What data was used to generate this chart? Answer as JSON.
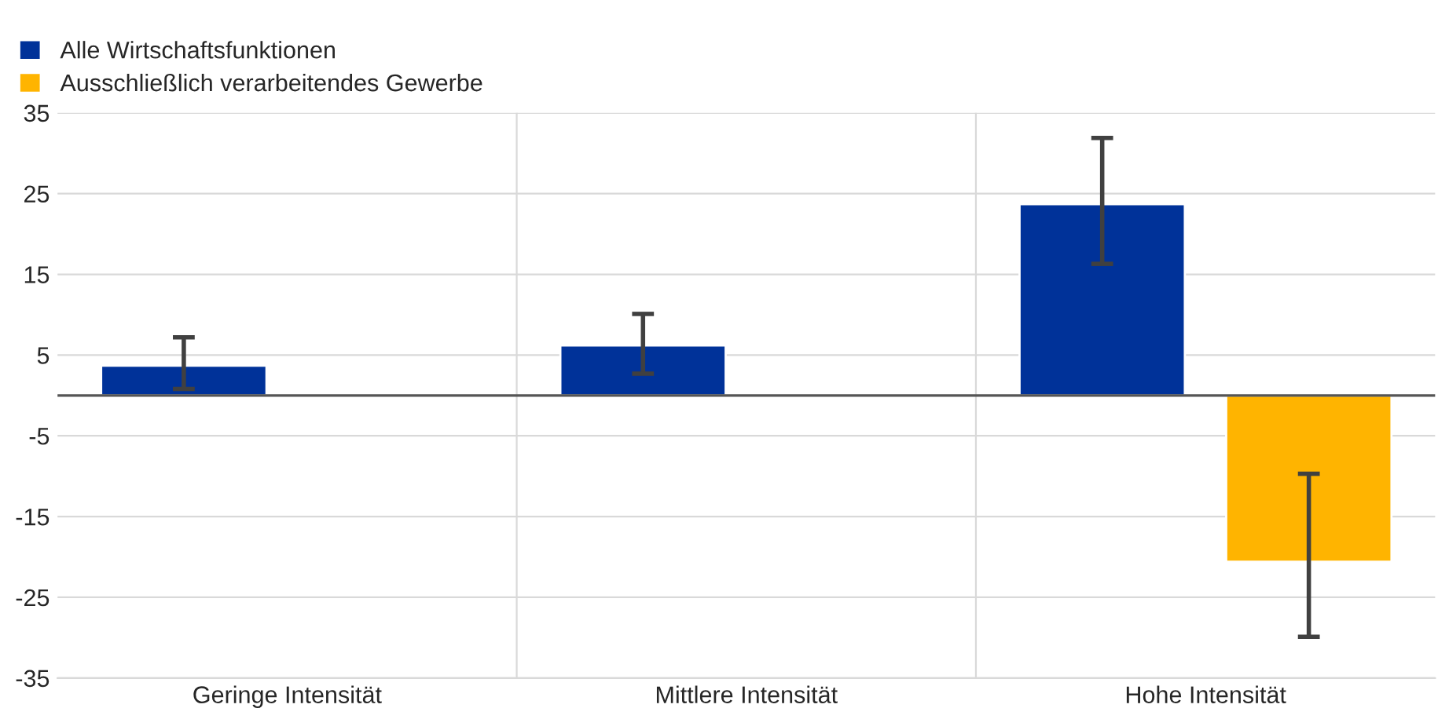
{
  "chart_data": {
    "type": "bar",
    "categories": [
      "Geringe Intensität",
      "Mittlere Intensität",
      "Hohe Intensität"
    ],
    "series": [
      {
        "name": "Alle Wirtschaftsfunktionen",
        "color": "#003299",
        "values": [
          3.7,
          6.2,
          23.7
        ],
        "errors": [
          [
            0.8,
            7.2
          ],
          [
            2.7,
            10.1
          ],
          [
            16.3,
            31.9
          ]
        ]
      },
      {
        "name": "Ausschließlich verarbeitendes Gewerbe",
        "color": "#ffb400",
        "values": [
          null,
          null,
          -20.6
        ],
        "errors": [
          null,
          null,
          [
            -29.9,
            -9.7
          ]
        ]
      }
    ],
    "ylim": [
      -35,
      35
    ],
    "yticks": [
      35,
      25,
      15,
      5,
      -5,
      -15,
      -25,
      -35
    ],
    "grid": "y",
    "legend": "top left"
  }
}
